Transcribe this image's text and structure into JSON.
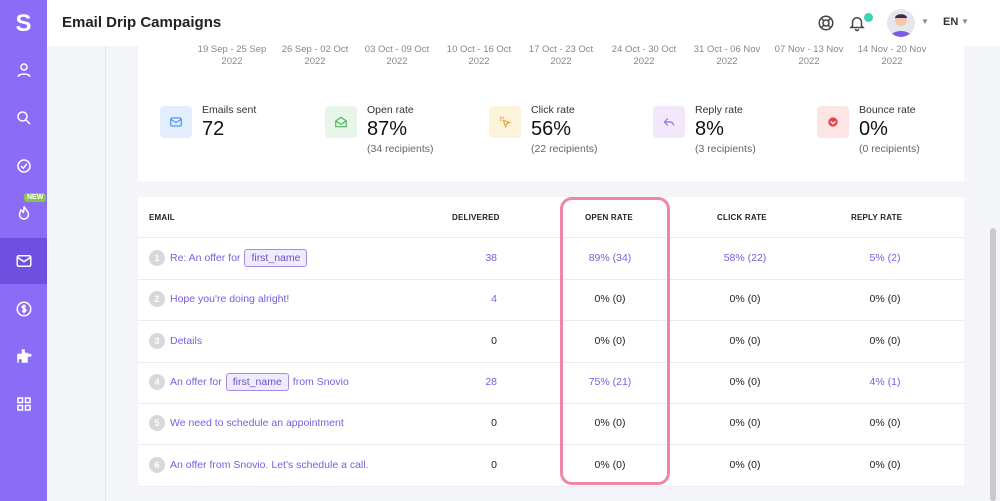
{
  "app": {
    "logo_letter": "S",
    "page_title": "Email Drip Campaigns",
    "language": "EN",
    "new_badge": "NEW"
  },
  "weeks": [
    {
      "range": "19 Sep - 25 Sep",
      "year": "2022"
    },
    {
      "range": "26 Sep - 02 Oct",
      "year": "2022"
    },
    {
      "range": "03 Oct - 09 Oct",
      "year": "2022"
    },
    {
      "range": "10 Oct - 16 Oct",
      "year": "2022"
    },
    {
      "range": "17 Oct - 23 Oct",
      "year": "2022"
    },
    {
      "range": "24 Oct - 30 Oct",
      "year": "2022"
    },
    {
      "range": "31 Oct - 06 Nov",
      "year": "2022"
    },
    {
      "range": "07 Nov - 13 Nov",
      "year": "2022"
    },
    {
      "range": "14 Nov - 20 Nov",
      "year": "2022"
    }
  ],
  "stats": [
    {
      "label": "Emails sent",
      "value": "72",
      "sub": "",
      "icon": "envelope-icon",
      "bg": "#e3eefc",
      "color": "#4a8fe7"
    },
    {
      "label": "Open rate",
      "value": "87%",
      "sub": "(34 recipients)",
      "icon": "open-envelope-icon",
      "bg": "#e6f6e8",
      "color": "#4fb45c"
    },
    {
      "label": "Click rate",
      "value": "56%",
      "sub": "(22 recipients)",
      "icon": "cursor-click-icon",
      "bg": "#fdf2dc",
      "color": "#e9a728"
    },
    {
      "label": "Reply rate",
      "value": "8%",
      "sub": "(3 recipients)",
      "icon": "reply-icon",
      "bg": "#f1e8fc",
      "color": "#a06be0"
    },
    {
      "label": "Bounce rate",
      "value": "0%",
      "sub": "(0 recipients)",
      "icon": "bounce-icon",
      "bg": "#fde5e6",
      "color": "#e2474f"
    }
  ],
  "table": {
    "headers": {
      "email": "EMAIL",
      "delivered": "DELIVERED",
      "open": "OPEN RATE",
      "click": "CLICK RATE",
      "reply": "REPLY RATE"
    },
    "rows": [
      {
        "num": "1",
        "pre": "Re: An offer for",
        "tag": "first_name",
        "post": "",
        "delivered": "38",
        "open": "89% (34)",
        "click": "58% (22)",
        "reply": "5% (2)"
      },
      {
        "num": "2",
        "pre": "Hope you're doing alright!",
        "tag": "",
        "post": "",
        "delivered": "4",
        "open": "0% (0)",
        "click": "0% (0)",
        "reply": "0% (0)"
      },
      {
        "num": "3",
        "pre": "Details",
        "tag": "",
        "post": "",
        "delivered": "0",
        "open": "0% (0)",
        "click": "0% (0)",
        "reply": "0% (0)"
      },
      {
        "num": "4",
        "pre": "An offer for",
        "tag": "first_name",
        "post": "from Snovio",
        "delivered": "28",
        "open": "75% (21)",
        "click": "0% (0)",
        "reply": "4% (1)"
      },
      {
        "num": "5",
        "pre": "We need to schedule an appointment",
        "tag": "",
        "post": "",
        "delivered": "0",
        "open": "0% (0)",
        "click": "0% (0)",
        "reply": "0% (0)"
      },
      {
        "num": "6",
        "pre": "An offer from Snovio. Let's schedule a call.",
        "tag": "",
        "post": "",
        "delivered": "0",
        "open": "0% (0)",
        "click": "0% (0)",
        "reply": "0% (0)"
      }
    ]
  }
}
